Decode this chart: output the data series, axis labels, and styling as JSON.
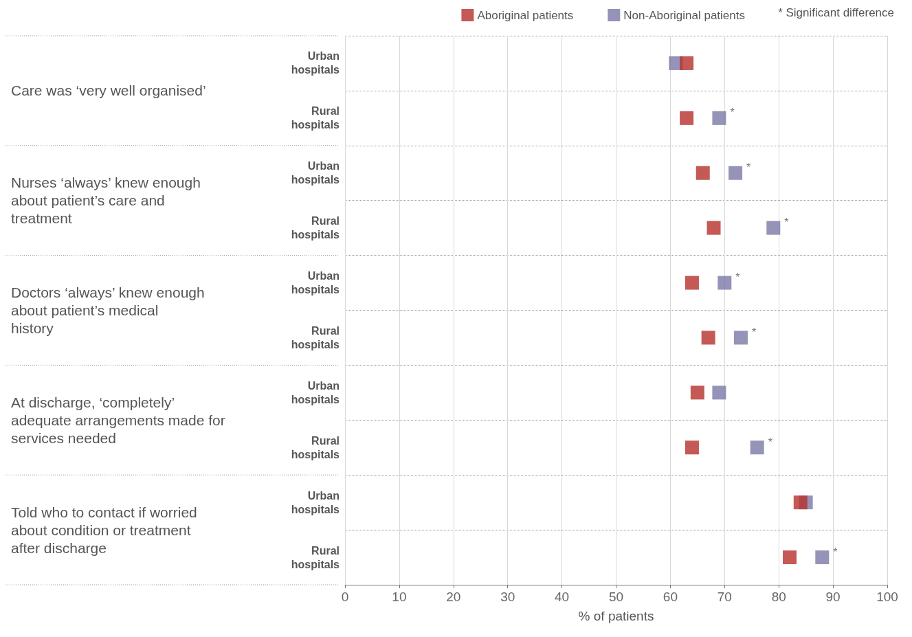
{
  "chart_data": {
    "type": "scatter",
    "orientation": "horizontal",
    "categories": [
      "Urban hospitals",
      "Rural hospitals",
      "Urban hospitals",
      "Rural hospitals",
      "Urban hospitals",
      "Rural hospitals",
      "Urban hospitals",
      "Rural hospitals",
      "Urban hospitals",
      "Rural hospitals"
    ],
    "series": [
      {
        "name": "Non-Aboriginal patients",
        "color": "#7b78a6",
        "values": [
          61,
          69,
          72,
          79,
          70,
          73,
          69,
          76,
          85,
          88
        ],
        "value_labels": [
          null,
          "*",
          "*",
          "*",
          "*",
          "*",
          null,
          "*",
          null,
          "*"
        ]
      },
      {
        "name": "Aboriginal patients",
        "color": "#b5302a",
        "values": [
          63,
          63,
          66,
          68,
          64,
          67,
          65,
          64,
          84,
          82
        ]
      }
    ],
    "xlabel": "% of patients",
    "xlim": [
      0,
      100
    ],
    "xticks": [
      0,
      10,
      20,
      30,
      40,
      50,
      60,
      70,
      80,
      90,
      100
    ],
    "annotations": [
      "Care was ‘very well organised’",
      "Nurses ‘always’ knew enough about patient’s care and treatment",
      "Doctors ‘always’ knew enough about patient’s medical history",
      "At discharge, ‘completely’ adequate arrangements made for services needed",
      "Told who to contact if worried about condition or treatment after discharge",
      "* Significant difference"
    ],
    "grid": true,
    "legend": "top right",
    "marker": "square"
  }
}
